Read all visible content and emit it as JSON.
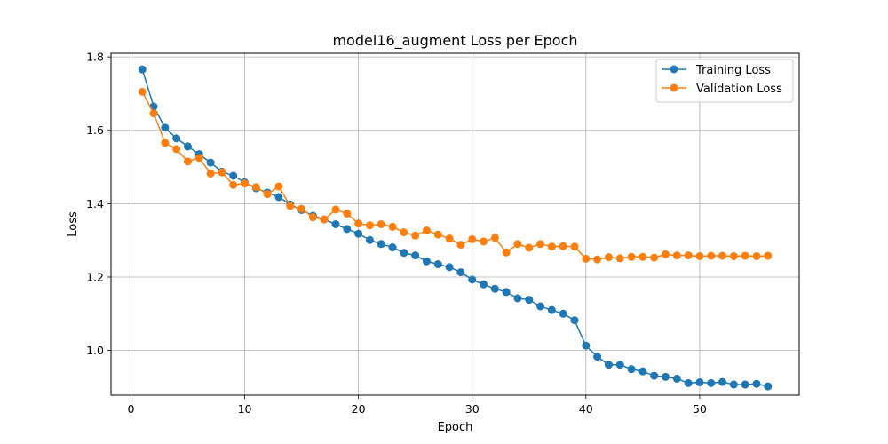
{
  "chart_data": {
    "type": "line",
    "title": "model16_augment Loss per Epoch",
    "xlabel": "Epoch",
    "ylabel": "Loss",
    "xlim": [
      -1.75,
      58.75
    ],
    "ylim": [
      0.878,
      1.81
    ],
    "xticks": [
      0,
      10,
      20,
      30,
      40,
      50
    ],
    "yticks": [
      1.0,
      1.2,
      1.4,
      1.6,
      1.8
    ],
    "ytick_labels": [
      "1.0",
      "1.2",
      "1.4",
      "1.6",
      "1.8"
    ],
    "grid": true,
    "legend_position": "top-right",
    "x": [
      1,
      2,
      3,
      4,
      5,
      6,
      7,
      8,
      9,
      10,
      11,
      12,
      13,
      14,
      15,
      16,
      17,
      18,
      19,
      20,
      21,
      22,
      23,
      24,
      25,
      26,
      27,
      28,
      29,
      30,
      31,
      32,
      33,
      34,
      35,
      36,
      37,
      38,
      39,
      40,
      41,
      42,
      43,
      44,
      45,
      46,
      47,
      48,
      49,
      50,
      51,
      52,
      53,
      54,
      55,
      56
    ],
    "series": [
      {
        "name": "Training Loss",
        "color": "#1f77b4",
        "values": [
          1.766,
          1.665,
          1.607,
          1.578,
          1.556,
          1.535,
          1.512,
          1.487,
          1.476,
          1.458,
          1.442,
          1.43,
          1.418,
          1.398,
          1.383,
          1.367,
          1.357,
          1.344,
          1.331,
          1.318,
          1.301,
          1.29,
          1.281,
          1.266,
          1.259,
          1.243,
          1.235,
          1.227,
          1.213,
          1.193,
          1.18,
          1.168,
          1.159,
          1.142,
          1.138,
          1.12,
          1.11,
          1.1,
          1.082,
          1.013,
          0.983,
          0.961,
          0.961,
          0.949,
          0.943,
          0.931,
          0.928,
          0.923,
          0.911,
          0.913,
          0.911,
          0.914,
          0.907,
          0.907,
          0.909,
          0.902
        ]
      },
      {
        "name": "Validation Loss",
        "color": "#ff7f0e",
        "values": [
          1.705,
          1.646,
          1.566,
          1.549,
          1.515,
          1.525,
          1.482,
          1.485,
          1.451,
          1.455,
          1.445,
          1.426,
          1.447,
          1.394,
          1.386,
          1.363,
          1.357,
          1.384,
          1.373,
          1.346,
          1.341,
          1.344,
          1.337,
          1.322,
          1.313,
          1.327,
          1.316,
          1.305,
          1.288,
          1.303,
          1.297,
          1.307,
          1.267,
          1.29,
          1.28,
          1.29,
          1.283,
          1.284,
          1.283,
          1.25,
          1.248,
          1.254,
          1.251,
          1.255,
          1.255,
          1.253,
          1.262,
          1.259,
          1.259,
          1.257,
          1.258,
          1.258,
          1.257,
          1.258,
          1.257,
          1.258
        ]
      }
    ]
  }
}
